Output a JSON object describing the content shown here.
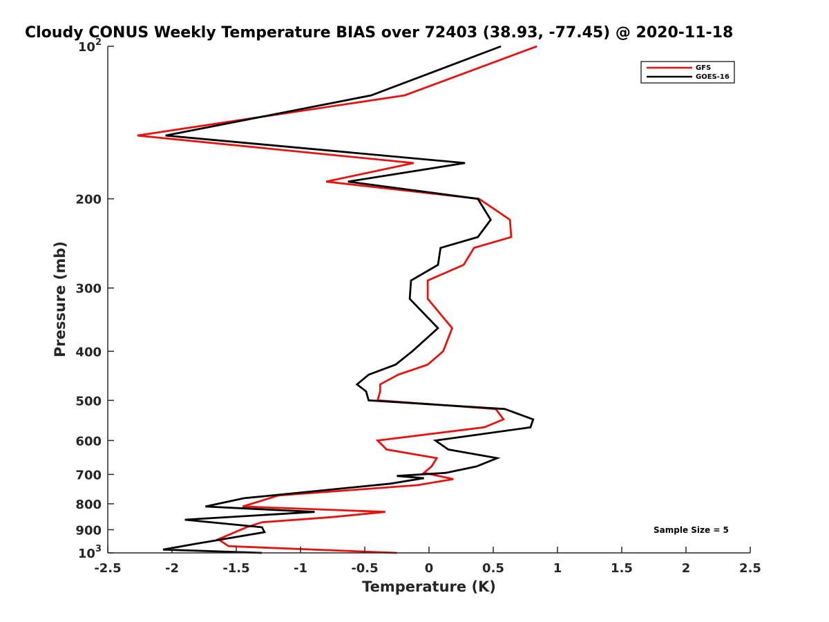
{
  "chart_data": {
    "type": "line",
    "title": "Cloudy CONUS Weekly Temperature BIAS over 72403 (38.93, -77.45) @ 2020-11-18",
    "xlabel": "Temperature (K)",
    "ylabel": "Pressure (mb)",
    "xlim": [
      -2.5,
      2.5
    ],
    "ylim": [
      100,
      1000
    ],
    "y_scale": "log",
    "y_reversed": true,
    "x_ticks": [
      "-2.5",
      "-2",
      "-1.5",
      "-1",
      "-0.5",
      "0",
      "0.5",
      "1",
      "1.5",
      "2",
      "2.5"
    ],
    "y_ticks": [
      {
        "value": 100,
        "base": "10",
        "exp": "2"
      },
      {
        "value": 200,
        "label": "200"
      },
      {
        "value": 300,
        "label": "300"
      },
      {
        "value": 400,
        "label": "400"
      },
      {
        "value": 500,
        "label": "500"
      },
      {
        "value": 600,
        "label": "600"
      },
      {
        "value": 700,
        "label": "700"
      },
      {
        "value": 800,
        "label": "800"
      },
      {
        "value": 900,
        "label": "900"
      },
      {
        "value": 1000,
        "base": "10",
        "exp": "3"
      }
    ],
    "legend_position": "top-right",
    "annotation": "Sample Size = 5",
    "series": [
      {
        "name": "GFS",
        "color": "#e8110f",
        "points": [
          [
            0.84,
            100
          ],
          [
            -0.19,
            125
          ],
          [
            -2.27,
            150
          ],
          [
            -0.12,
            170
          ],
          [
            -0.8,
            185
          ],
          [
            0.39,
            200
          ],
          [
            0.63,
            220
          ],
          [
            0.64,
            238
          ],
          [
            0.35,
            250
          ],
          [
            0.27,
            270
          ],
          [
            -0.01,
            290
          ],
          [
            -0.01,
            315
          ],
          [
            0.18,
            360
          ],
          [
            0.11,
            400
          ],
          [
            -0.01,
            425
          ],
          [
            -0.24,
            445
          ],
          [
            -0.38,
            465
          ],
          [
            -0.38,
            480
          ],
          [
            -0.4,
            500
          ],
          [
            0.52,
            520
          ],
          [
            0.58,
            545
          ],
          [
            0.43,
            565
          ],
          [
            -0.4,
            600
          ],
          [
            -0.33,
            625
          ],
          [
            0.06,
            650
          ],
          [
            0.02,
            675
          ],
          [
            -0.04,
            695
          ],
          [
            0.19,
            715
          ],
          [
            -0.09,
            735
          ],
          [
            -1.17,
            770
          ],
          [
            -1.45,
            810
          ],
          [
            -0.34,
            830
          ],
          [
            -0.76,
            850
          ],
          [
            -1.3,
            870
          ],
          [
            -1.42,
            890
          ],
          [
            -1.64,
            940
          ],
          [
            -1.56,
            970
          ],
          [
            -0.25,
            1000
          ]
        ]
      },
      {
        "name": "GOES-16",
        "color": "#000000",
        "points": [
          [
            0.56,
            100
          ],
          [
            -0.45,
            125
          ],
          [
            -2.05,
            150
          ],
          [
            0.28,
            170
          ],
          [
            -0.63,
            185
          ],
          [
            0.38,
            200
          ],
          [
            0.48,
            220
          ],
          [
            0.38,
            238
          ],
          [
            0.09,
            250
          ],
          [
            0.07,
            270
          ],
          [
            -0.14,
            290
          ],
          [
            -0.15,
            315
          ],
          [
            0.07,
            360
          ],
          [
            -0.13,
            400
          ],
          [
            -0.26,
            425
          ],
          [
            -0.47,
            445
          ],
          [
            -0.56,
            465
          ],
          [
            -0.49,
            480
          ],
          [
            -0.47,
            500
          ],
          [
            0.59,
            520
          ],
          [
            0.81,
            545
          ],
          [
            0.79,
            565
          ],
          [
            0.05,
            600
          ],
          [
            0.15,
            625
          ],
          [
            0.53,
            650
          ],
          [
            0.37,
            675
          ],
          [
            0.13,
            695
          ],
          [
            -0.25,
            705
          ],
          [
            -0.04,
            712
          ],
          [
            -0.3,
            730
          ],
          [
            -1.44,
            780
          ],
          [
            -1.74,
            810
          ],
          [
            -0.89,
            830
          ],
          [
            -1.9,
            860
          ],
          [
            -1.3,
            890
          ],
          [
            -1.28,
            910
          ],
          [
            -1.82,
            960
          ],
          [
            -2.07,
            985
          ],
          [
            -1.3,
            1000
          ]
        ]
      }
    ]
  }
}
